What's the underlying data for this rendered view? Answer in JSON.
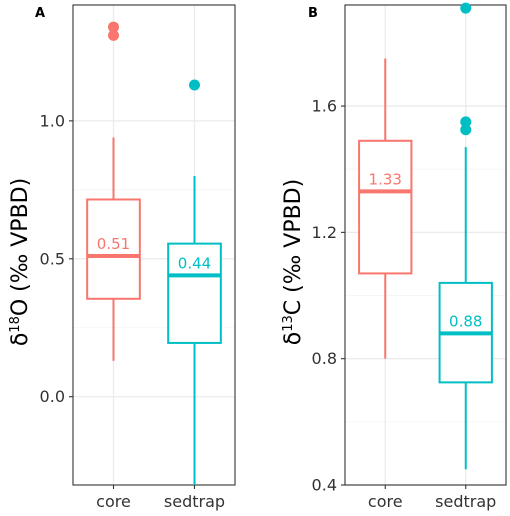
{
  "chart_data": [
    {
      "type": "boxplot",
      "panel_label": "A",
      "ylabel": "δ18O (‰ VPBD)",
      "ylabel_parts": {
        "delta": "δ",
        "superscript": "18",
        "element": "O",
        "unit": "(‰ VPBD)"
      },
      "categories": [
        "core",
        "sedtrap"
      ],
      "ylim": [
        -0.32,
        1.42
      ],
      "yticks": [
        "0.0",
        "0.5",
        "1.0"
      ],
      "ytick_values": [
        0.0,
        0.5,
        1.0
      ],
      "grid": true,
      "series": [
        {
          "category": "core",
          "color": "#F8766D",
          "whisker_low": 0.13,
          "q1": 0.355,
          "median": 0.51,
          "q3": 0.715,
          "whisker_high": 0.94,
          "outliers": [
            1.34,
            1.31
          ],
          "median_label": "0.51"
        },
        {
          "category": "sedtrap",
          "color": "#00BFC4",
          "whisker_low": -0.32,
          "q1": 0.195,
          "median": 0.44,
          "q3": 0.555,
          "whisker_high": 0.8,
          "outliers": [
            1.13
          ],
          "median_label": "0.44"
        }
      ]
    },
    {
      "type": "boxplot",
      "panel_label": "B",
      "ylabel": "δ13C (‰ VPBD)",
      "ylabel_parts": {
        "delta": "δ",
        "superscript": "13",
        "element": "C",
        "unit": "(‰ VPBD)"
      },
      "categories": [
        "core",
        "sedtrap"
      ],
      "ylim": [
        0.4,
        1.92
      ],
      "yticks": [
        "0.4",
        "0.8",
        "1.2",
        "1.6"
      ],
      "ytick_values": [
        0.4,
        0.8,
        1.2,
        1.6
      ],
      "grid": true,
      "series": [
        {
          "category": "core",
          "color": "#F8766D",
          "whisker_low": 0.8,
          "q1": 1.07,
          "median": 1.33,
          "q3": 1.49,
          "whisker_high": 1.75,
          "outliers": [],
          "median_label": "1.33"
        },
        {
          "category": "sedtrap",
          "color": "#00BFC4",
          "whisker_low": 0.45,
          "q1": 0.725,
          "median": 0.88,
          "q3": 1.04,
          "whisker_high": 1.47,
          "outliers": [
            1.91,
            1.55,
            1.525
          ],
          "median_label": "0.88"
        }
      ]
    }
  ]
}
